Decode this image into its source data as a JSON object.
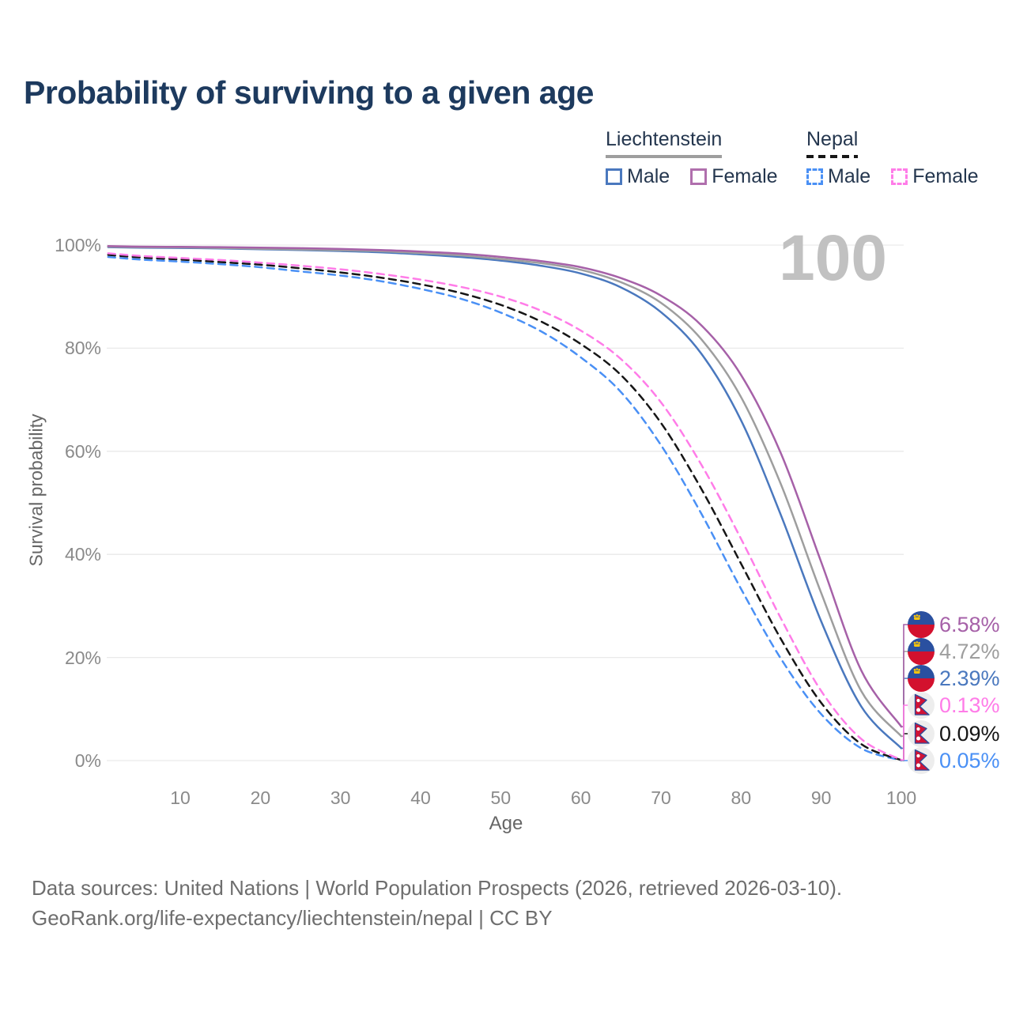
{
  "title": "Probability of surviving to a given age",
  "watermark": "100",
  "colors": {
    "title_text": "#1d3a5e",
    "legend_text": "#24364e",
    "tick_text": "#8a8a8a",
    "axis_title_text": "#666666",
    "gridline": "#e9e9e9",
    "watermark_text": "#c1c1c1",
    "footer_text": "#6e6e6e",
    "liechtenstein_male": "#4a78be",
    "liechtenstein_female": "#a661a8",
    "liechtenstein_total": "#9e9e9e",
    "nepal_male": "#4a90f5",
    "nepal_female": "#ff7ce8",
    "nepal_total": "#161616",
    "flag_li_blue": "#2a50a0",
    "flag_li_red": "#d3112e",
    "flag_li_gold": "#f6c40e",
    "flag_np_bg": "#ededed",
    "flag_np_crimson": "#cf1336",
    "flag_np_border": "#2b4a9b"
  },
  "legend": {
    "groups": [
      {
        "label": "Liechtenstein",
        "underline_style": "solid",
        "underline_color": "#9e9e9e",
        "items": [
          {
            "label": "Male",
            "color": "#4a78be",
            "dashed": false
          },
          {
            "label": "Female",
            "color": "#b06fad",
            "dashed": false
          }
        ]
      },
      {
        "label": "Nepal",
        "underline_style": "dashed",
        "underline_color": "#161616",
        "items": [
          {
            "label": "Male",
            "color": "#4a90f5",
            "dashed": true
          },
          {
            "label": "Female",
            "color": "#ff7ce8",
            "dashed": true
          }
        ]
      }
    ]
  },
  "axes": {
    "y_title": "Survival probability",
    "x_title": "Age",
    "y_tick_labels": [
      "0%",
      "20%",
      "40%",
      "60%",
      "80%",
      "100%"
    ],
    "y_tick_values": [
      0,
      20,
      40,
      60,
      80,
      100
    ],
    "x_tick_labels": [
      "10",
      "20",
      "30",
      "40",
      "50",
      "60",
      "70",
      "80",
      "90",
      "100"
    ],
    "x_tick_values": [
      10,
      20,
      30,
      40,
      50,
      60,
      70,
      80,
      90,
      100
    ]
  },
  "chart_data": {
    "type": "line",
    "title": "Probability of surviving to a given age",
    "xlabel": "Age",
    "ylabel": "Survival probability",
    "xlim": [
      0,
      100
    ],
    "ylim": [
      0,
      100
    ],
    "grid": "horizontal",
    "x": [
      1,
      5,
      10,
      15,
      20,
      25,
      30,
      35,
      40,
      45,
      50,
      55,
      60,
      65,
      70,
      75,
      80,
      85,
      90,
      95,
      100
    ],
    "series": [
      {
        "name": "Liechtenstein Male",
        "color": "#4a78be",
        "dashed": false,
        "flag": "liechtenstein",
        "end_label": "2.39%",
        "label_row": 2,
        "values": [
          99.6,
          99.5,
          99.45,
          99.35,
          99.2,
          99.05,
          98.85,
          98.6,
          98.2,
          97.7,
          97.0,
          96.0,
          94.5,
          91.8,
          87.0,
          79.0,
          66.0,
          47.5,
          27.0,
          10.5,
          2.39
        ]
      },
      {
        "name": "Liechtenstein",
        "color": "#9e9e9e",
        "dashed": false,
        "flag": "liechtenstein",
        "end_label": "4.72%",
        "label_row": 1,
        "values": [
          99.7,
          99.6,
          99.55,
          99.45,
          99.3,
          99.15,
          99.0,
          98.8,
          98.45,
          98.0,
          97.3,
          96.5,
          95.2,
          92.8,
          88.8,
          81.8,
          70.5,
          53.5,
          32.5,
          13.5,
          4.72
        ]
      },
      {
        "name": "Liechtenstein Female",
        "color": "#a661a8",
        "dashed": false,
        "flag": "liechtenstein",
        "end_label": "6.58%",
        "label_row": 0,
        "values": [
          99.8,
          99.7,
          99.65,
          99.6,
          99.5,
          99.4,
          99.25,
          99.05,
          98.75,
          98.35,
          97.7,
          96.9,
          95.7,
          93.6,
          90.2,
          84.5,
          74.8,
          59.5,
          38.5,
          17.5,
          6.58
        ]
      },
      {
        "name": "Nepal Male",
        "color": "#4a90f5",
        "dashed": true,
        "flag": "nepal",
        "end_label": "0.05%",
        "label_row": 5,
        "values": [
          97.7,
          97.2,
          96.8,
          96.3,
          95.7,
          94.9,
          94.1,
          93.0,
          91.5,
          89.6,
          86.9,
          83.3,
          78.2,
          71.5,
          61.2,
          48.0,
          33.3,
          19.7,
          9.0,
          2.4,
          0.05
        ]
      },
      {
        "name": "Nepal",
        "color": "#161616",
        "dashed": true,
        "flag": "nepal",
        "end_label": "0.09%",
        "label_row": 4,
        "values": [
          98.1,
          97.6,
          97.2,
          96.7,
          96.2,
          95.5,
          94.7,
          93.7,
          92.4,
          90.7,
          88.4,
          85.2,
          80.8,
          74.8,
          65.5,
          52.8,
          38.2,
          23.5,
          11.2,
          3.2,
          0.09
        ]
      },
      {
        "name": "Nepal Female",
        "color": "#ff7ce8",
        "dashed": true,
        "flag": "nepal",
        "end_label": "0.13%",
        "label_row": 3,
        "values": [
          98.4,
          97.9,
          97.5,
          97.1,
          96.6,
          96.0,
          95.3,
          94.4,
          93.3,
          91.9,
          90.0,
          87.3,
          83.4,
          77.9,
          69.5,
          57.5,
          43.0,
          27.5,
          13.5,
          4.2,
          0.13
        ]
      }
    ]
  },
  "footer": {
    "line1": "Data sources: United Nations | World Population Prospects (2026, retrieved 2026-03-10).",
    "line2": "GeoRank.org/life-expectancy/liechtenstein/nepal | CC BY"
  }
}
